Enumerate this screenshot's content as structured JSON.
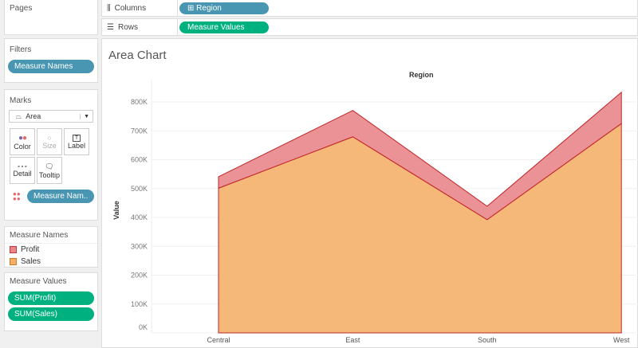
{
  "pages": {
    "title": "Pages"
  },
  "filters": {
    "title": "Filters",
    "pill": "Measure Names"
  },
  "marks": {
    "title": "Marks",
    "type": "Area",
    "buttons": [
      "Color",
      "Size",
      "Label",
      "Detail",
      "Tooltip"
    ],
    "color_pill": "Measure Nam.."
  },
  "legend": {
    "title": "Measure Names",
    "items": [
      {
        "label": "Profit",
        "color": "#e8868a"
      },
      {
        "label": "Sales",
        "color": "#f4b06a"
      }
    ]
  },
  "measure_values": {
    "title": "Measure Values",
    "pills": [
      "SUM(Profit)",
      "SUM(Sales)"
    ]
  },
  "shelves": {
    "columns_label": "Columns",
    "columns_pill": "Region",
    "rows_label": "Rows",
    "rows_pill": "Measure Values"
  },
  "chart_data": {
    "type": "area",
    "title": "Area Chart",
    "header": "Region",
    "ylabel": "Value",
    "categories": [
      "Central",
      "East",
      "South",
      "West"
    ],
    "series": [
      {
        "name": "Sales",
        "values": [
          501000,
          679000,
          392000,
          725000
        ],
        "color": "#f4b06a"
      },
      {
        "name": "Profit",
        "values": [
          40000,
          91500,
          46700,
          108400
        ],
        "color": "#e8868a"
      }
    ],
    "stacked": true,
    "ylim": [
      0,
      800000
    ],
    "yticks": [
      "0K",
      "100K",
      "200K",
      "300K",
      "400K",
      "500K",
      "600K",
      "700K",
      "800K"
    ]
  }
}
